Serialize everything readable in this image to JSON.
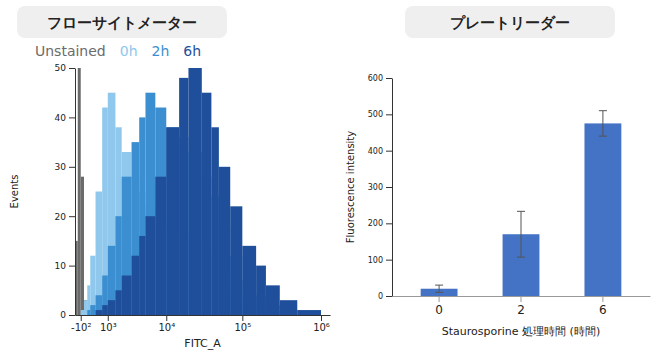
{
  "chart_data": [
    {
      "type": "histogram",
      "title": "フローサイトメーター",
      "xlabel": "FITC_A",
      "ylabel": "Events",
      "log": "x",
      "legend": "top",
      "bins": [
        -300,
        -200,
        -100,
        0,
        100,
        200,
        400,
        700,
        1000,
        1500,
        2000,
        3000,
        4000,
        5000,
        7000,
        10000,
        15000,
        20000,
        30000,
        40000,
        50000,
        70000,
        100000,
        150000,
        200000,
        300000,
        500000,
        1000000
      ],
      "series": [
        {
          "name": "Unstained",
          "color": "#6b6b6b",
          "values": [
            15,
            50,
            28,
            3,
            0,
            0,
            0,
            0,
            0,
            0,
            0,
            0,
            0,
            0,
            0,
            0,
            0,
            0,
            0,
            0,
            0,
            0,
            0,
            0,
            0,
            0,
            0
          ]
        },
        {
          "name": "0h",
          "color": "#8fc8ec",
          "values": [
            0,
            0,
            1,
            3,
            6,
            12,
            25,
            42,
            45,
            38,
            33,
            28,
            25,
            22,
            20,
            18,
            17,
            15,
            13,
            10,
            8,
            5,
            3,
            2,
            1,
            1,
            0
          ]
        },
        {
          "name": "2h",
          "color": "#3b8fd0",
          "values": [
            0,
            0,
            0,
            0,
            1,
            2,
            4,
            8,
            14,
            20,
            28,
            35,
            40,
            45,
            42,
            38,
            36,
            33,
            28,
            24,
            18,
            12,
            7,
            4,
            2,
            1,
            0
          ]
        },
        {
          "name": "6h",
          "color": "#1f4f9a",
          "values": [
            0,
            0,
            0,
            0,
            0,
            0,
            1,
            2,
            3,
            5,
            8,
            12,
            16,
            20,
            28,
            38,
            48,
            50,
            45,
            38,
            30,
            22,
            14,
            10,
            6,
            3,
            1
          ]
        }
      ],
      "xlim": [
        -300,
        1300000
      ],
      "xticks": [
        {
          "value": -100,
          "label": "-10²"
        },
        {
          "value": 1000,
          "label": "10³"
        },
        {
          "value": 10000,
          "label": "10⁴"
        },
        {
          "value": 100000,
          "label": "10⁵"
        },
        {
          "value": 1000000,
          "label": "10⁶"
        }
      ],
      "ylim": [
        0,
        50
      ],
      "yticks": [
        0,
        10,
        20,
        30,
        40,
        50
      ]
    },
    {
      "type": "bar",
      "title": "プレートリーダー",
      "xlabel": "Staurosporine 処理時間 (時間)",
      "ylabel": "Fluorescence intensity",
      "categories": [
        "0",
        "2",
        "6"
      ],
      "values": [
        20,
        170,
        475
      ],
      "errors": [
        10,
        63,
        35
      ],
      "color": "#4472c4",
      "ylim": [
        0,
        600
      ],
      "yticks": [
        0,
        100,
        200,
        300,
        400,
        500,
        600
      ]
    }
  ]
}
